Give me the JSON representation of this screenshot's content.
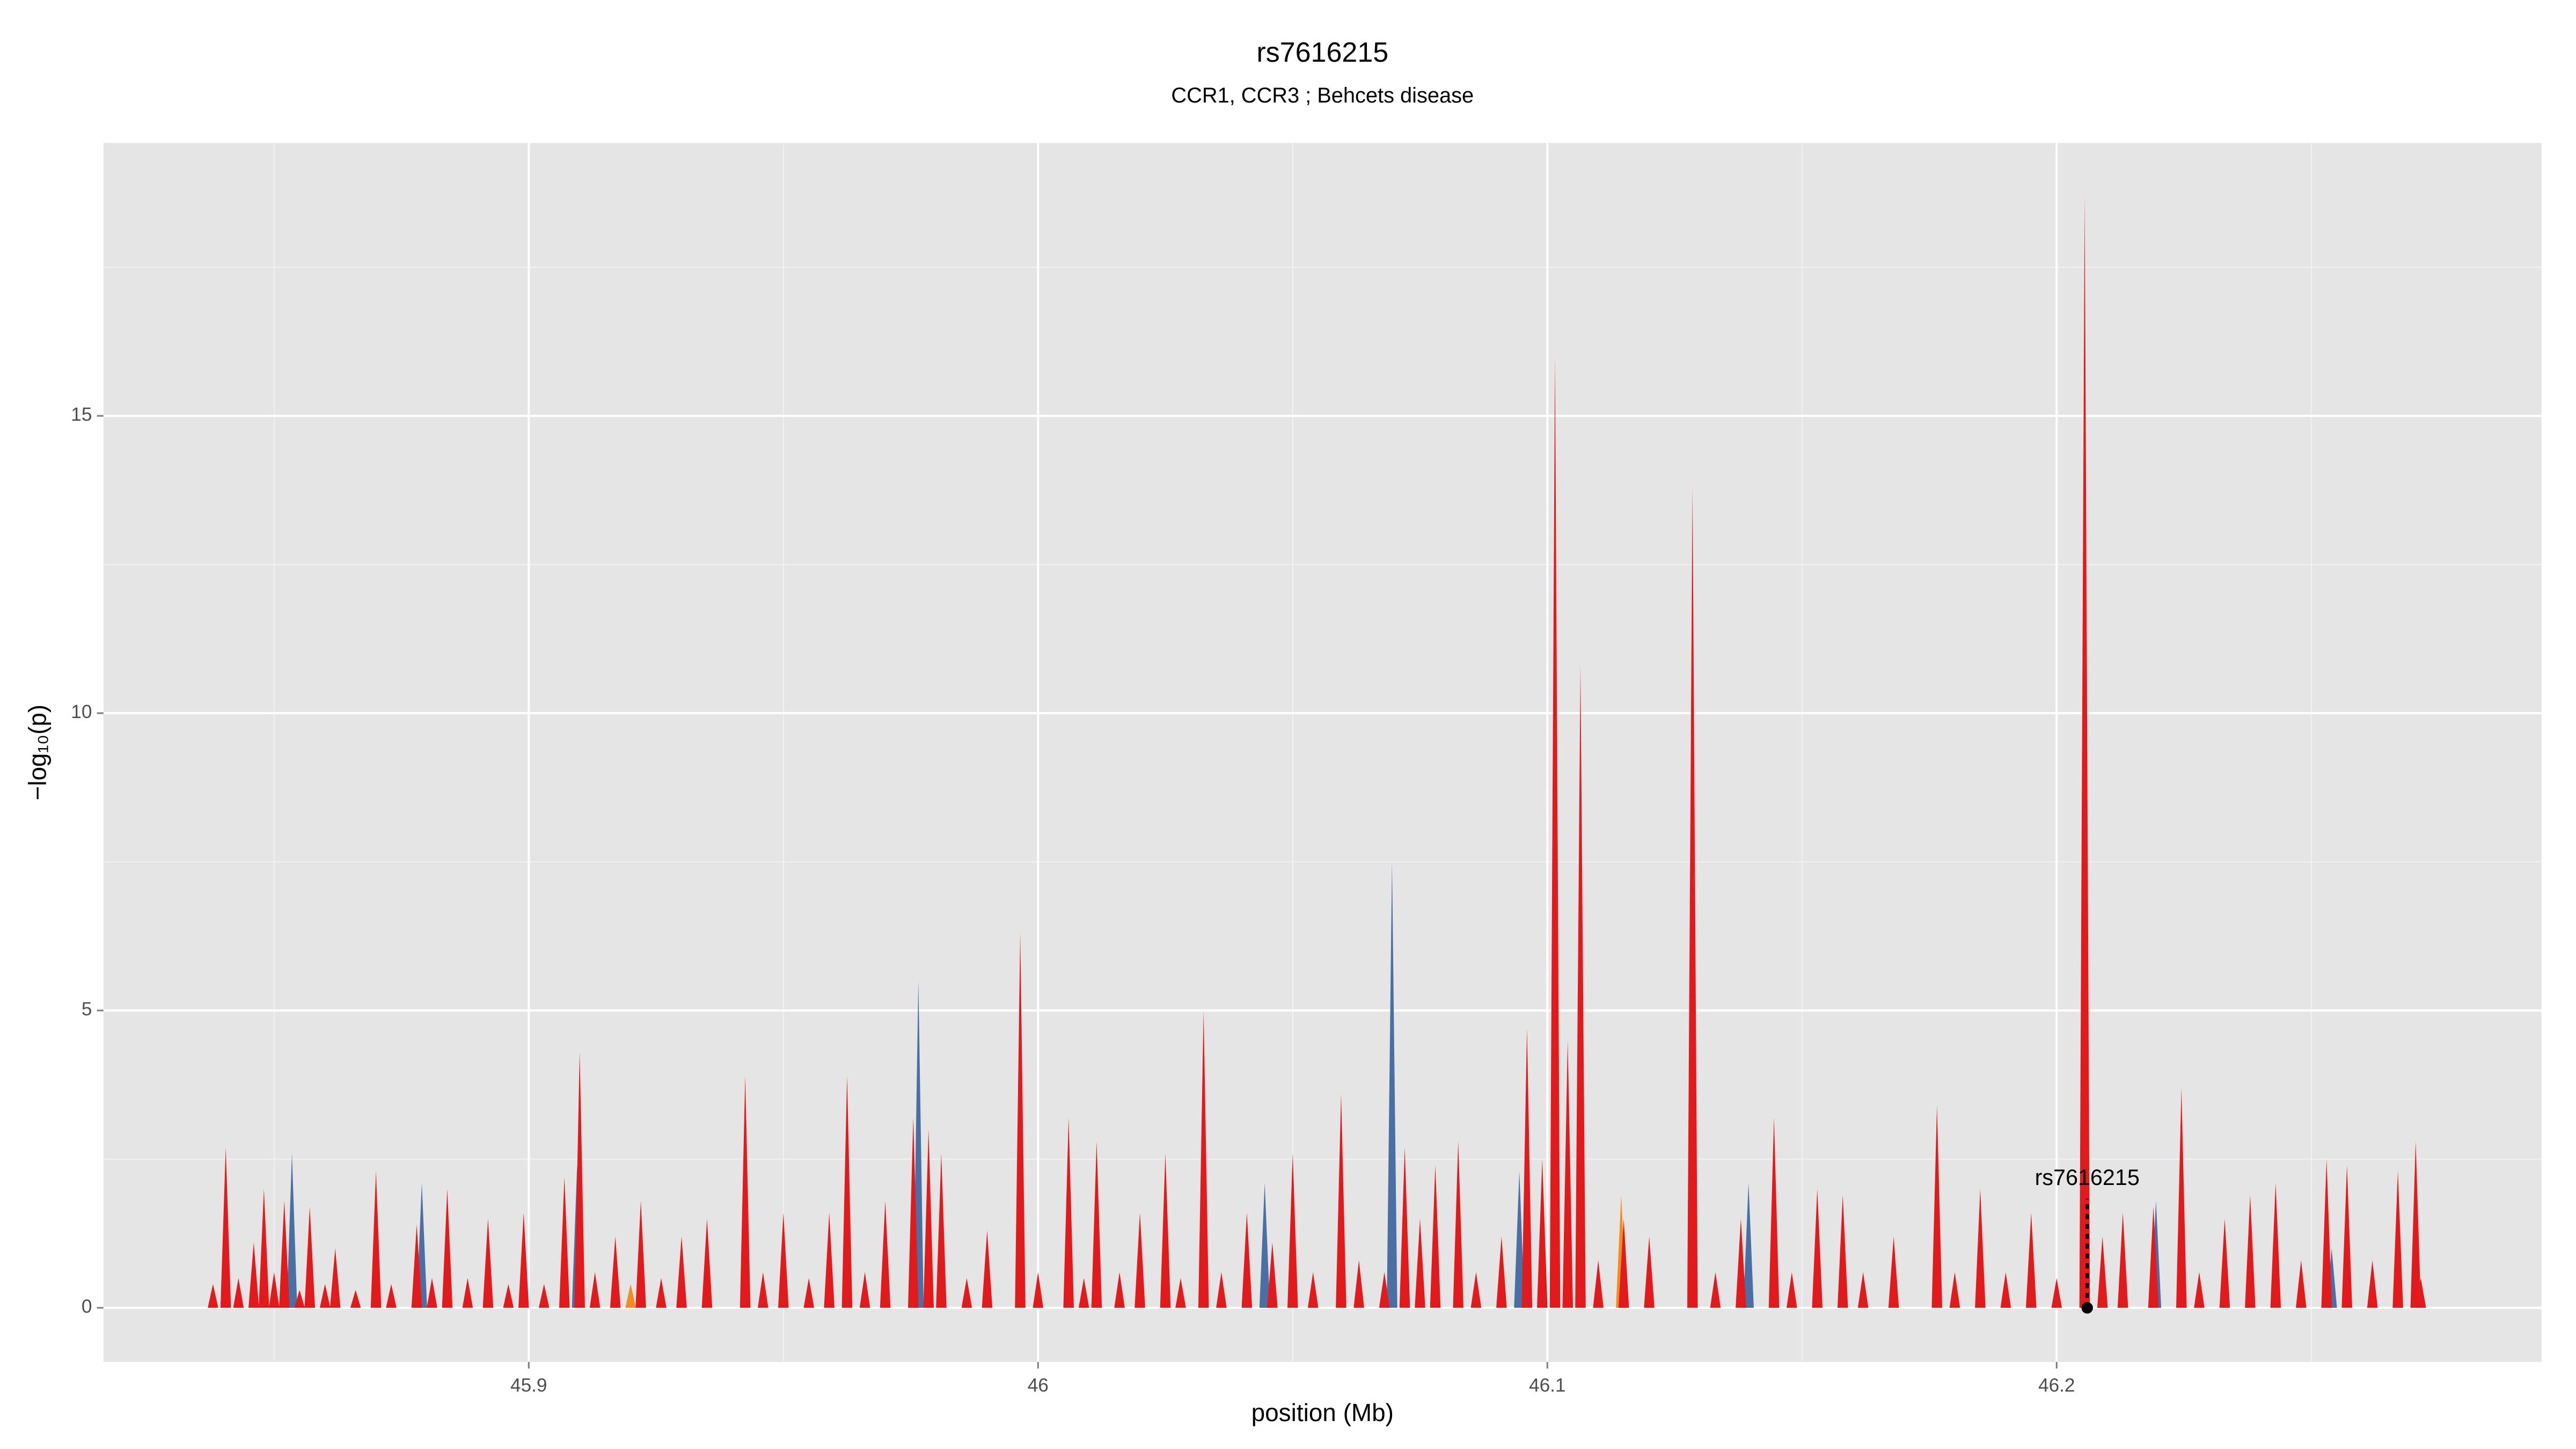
{
  "chart_data": {
    "type": "spike",
    "title": "rs7616215",
    "subtitle": "CCR1, CCR3 ; Behcets disease",
    "xlabel": "position (Mb)",
    "ylabel": "−log₁₀(p)",
    "xlim": [
      45.8165,
      46.2952
    ],
    "ylim": [
      -0.91,
      19.59
    ],
    "xticks": [
      45.9,
      46.0,
      46.1,
      46.2
    ],
    "yticks": [
      0,
      5,
      10,
      15
    ],
    "grid": true,
    "series": [
      {
        "name": "orange",
        "color": "#f28c1e",
        "x": [
          45.92,
          46.0,
          46.1145,
          46.1445
        ],
        "values": [
          0.4,
          0.3,
          1.9,
          1.5
        ]
      },
      {
        "name": "blue",
        "color": "#4a6fa5",
        "x": [
          45.8535,
          45.879,
          45.9095,
          45.9765,
          46.0445,
          46.0695,
          46.0945,
          46.1395,
          46.2195,
          46.254
        ],
        "values": [
          2.6,
          2.1,
          2.4,
          5.5,
          2.1,
          7.5,
          2.3,
          2.1,
          1.8,
          1.0
        ]
      },
      {
        "name": "red",
        "color": "#e31a1c",
        "x": [
          45.838,
          45.8405,
          45.843,
          45.846,
          45.848,
          45.85,
          45.852,
          45.855,
          45.857,
          45.86,
          45.862,
          45.866,
          45.87,
          45.873,
          45.878,
          45.881,
          45.884,
          45.888,
          45.892,
          45.896,
          45.899,
          45.903,
          45.907,
          45.91,
          45.913,
          45.917,
          45.922,
          45.926,
          45.93,
          45.935,
          45.9425,
          45.946,
          45.95,
          45.955,
          45.959,
          45.9625,
          45.966,
          45.97,
          45.9755,
          45.9785,
          45.981,
          45.986,
          45.99,
          45.9965,
          46.0,
          46.006,
          46.009,
          46.0115,
          46.016,
          46.02,
          46.025,
          46.028,
          46.0325,
          46.036,
          46.041,
          46.046,
          46.05,
          46.054,
          46.0595,
          46.063,
          46.068,
          46.072,
          46.075,
          46.078,
          46.0825,
          46.086,
          46.091,
          46.096,
          46.099,
          46.1015,
          46.104,
          46.1065,
          46.11,
          46.115,
          46.12,
          46.1285,
          46.133,
          46.138,
          46.1445,
          46.148,
          46.153,
          46.158,
          46.162,
          46.168,
          46.1765,
          46.18,
          46.185,
          46.19,
          46.195,
          46.2,
          46.2055,
          46.209,
          46.213,
          46.219,
          46.2245,
          46.228,
          46.233,
          46.238,
          46.243,
          46.248,
          46.253,
          46.257,
          46.262,
          46.267,
          46.2705,
          46.2715
        ],
        "values": [
          0.4,
          2.7,
          0.5,
          1.1,
          2.0,
          0.6,
          1.8,
          0.3,
          1.7,
          0.4,
          1.0,
          0.3,
          2.3,
          0.4,
          1.4,
          0.5,
          2.0,
          0.5,
          1.5,
          0.4,
          1.6,
          0.4,
          2.2,
          4.3,
          0.6,
          1.2,
          1.8,
          0.5,
          1.2,
          1.5,
          3.9,
          0.6,
          1.6,
          0.5,
          1.6,
          3.9,
          0.6,
          1.8,
          3.2,
          3.0,
          2.6,
          0.5,
          1.3,
          6.3,
          0.6,
          3.2,
          0.5,
          2.8,
          0.6,
          1.6,
          2.6,
          0.5,
          5.0,
          0.6,
          1.6,
          1.1,
          2.6,
          0.6,
          3.6,
          0.8,
          0.6,
          2.7,
          1.5,
          2.4,
          2.8,
          0.6,
          1.2,
          4.7,
          2.5,
          16.0,
          4.5,
          10.8,
          0.8,
          1.5,
          1.2,
          13.8,
          0.6,
          1.5,
          3.2,
          0.6,
          2.0,
          1.9,
          0.6,
          1.2,
          3.4,
          0.6,
          2.0,
          0.6,
          1.6,
          0.5,
          18.7,
          1.2,
          1.6,
          1.7,
          3.7,
          0.6,
          1.5,
          1.9,
          2.1,
          0.8,
          2.5,
          2.4,
          0.8,
          2.3,
          2.8,
          0.5
        ]
      }
    ],
    "annotation": {
      "label": "rs7616215",
      "x": 46.206,
      "y": 0
    }
  }
}
